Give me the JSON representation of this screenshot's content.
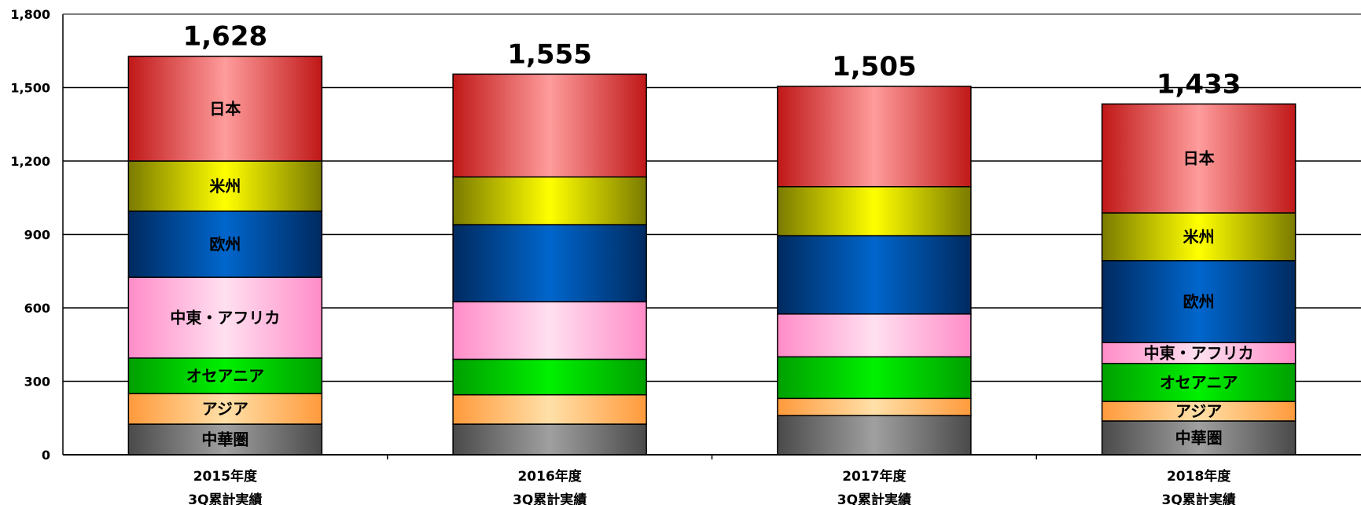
{
  "chart_data": {
    "type": "bar",
    "stacked": true,
    "title": "",
    "xlabel": "",
    "ylabel": "",
    "ylim": [
      0,
      1800
    ],
    "yticks": [
      "0",
      "300",
      "600",
      "900",
      "1,200",
      "1,500",
      "1,800"
    ],
    "grid": true,
    "categories": [
      [
        "2015年度",
        "3Q累計実績"
      ],
      [
        "2016年度",
        "3Q累計実績"
      ],
      [
        "2017年度",
        "3Q累計実績"
      ],
      [
        "2018年度",
        "3Q累計実績"
      ]
    ],
    "totals": [
      "1,628",
      "1,555",
      "1,505",
      "1,433"
    ],
    "series": [
      {
        "name": "中華圏",
        "values": [
          125,
          125,
          160,
          138
        ],
        "colors": [
          "#4a4a4a",
          "#a0a0a0"
        ],
        "show_label": [
          true,
          false,
          false,
          true
        ]
      },
      {
        "name": "アジア",
        "values": [
          125,
          120,
          70,
          80
        ],
        "colors": [
          "#ff9a3c",
          "#ffe0a8"
        ],
        "show_label": [
          true,
          false,
          false,
          true
        ]
      },
      {
        "name": "オセアニア",
        "values": [
          145,
          145,
          170,
          155
        ],
        "colors": [
          "#00a000",
          "#00f000"
        ],
        "show_label": [
          true,
          false,
          false,
          true
        ]
      },
      {
        "name": "中東・アフリカ",
        "values": [
          330,
          235,
          175,
          85
        ],
        "colors": [
          "#ff8cc8",
          "#ffe0f0"
        ],
        "show_label": [
          true,
          false,
          false,
          true
        ]
      },
      {
        "name": "欧州",
        "values": [
          270,
          315,
          320,
          335
        ],
        "colors": [
          "#002a60",
          "#0066cc"
        ],
        "show_label": [
          true,
          false,
          false,
          true
        ]
      },
      {
        "name": "米州",
        "values": [
          205,
          195,
          200,
          195
        ],
        "colors": [
          "#7a7a00",
          "#ffff00"
        ],
        "show_label": [
          true,
          false,
          false,
          true
        ]
      },
      {
        "name": "日本",
        "values": [
          428,
          420,
          410,
          445
        ],
        "colors": [
          "#c01818",
          "#ff9c9c"
        ],
        "show_label": [
          true,
          false,
          false,
          true
        ]
      }
    ]
  }
}
